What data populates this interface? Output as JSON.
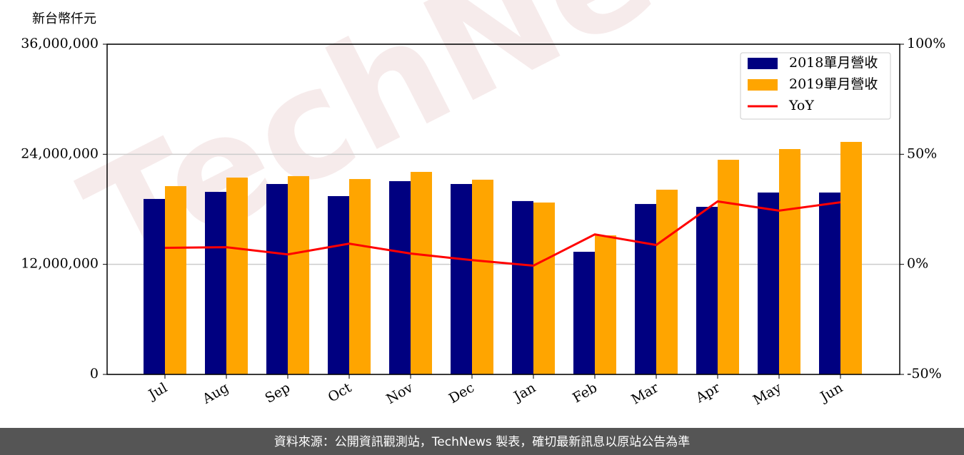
{
  "chart_data": {
    "type": "bar-line",
    "y_label": "新台幣仟元",
    "watermark": "TechNews",
    "footer": "資料來源：公開資訊觀測站，TechNews 製表，確切最新訊息以原站公告為準",
    "categories": [
      "Jul",
      "Aug",
      "Sep",
      "Oct",
      "Nov",
      "Dec",
      "Jan",
      "Feb",
      "Mar",
      "Apr",
      "May",
      "Jun"
    ],
    "series": [
      {
        "name": "2018單月營收",
        "color": "#000080",
        "type": "bar",
        "values": [
          19130000,
          19900000,
          20760000,
          19440000,
          21070000,
          20760000,
          18900000,
          13370000,
          18580000,
          18270000,
          19830000,
          19830000
        ]
      },
      {
        "name": "2019單月營收",
        "color": "#FFA500",
        "type": "bar",
        "values": [
          20530000,
          21460000,
          21620000,
          21300000,
          22080000,
          21230000,
          18740000,
          15160000,
          20140000,
          23400000,
          24570000,
          25350000
        ]
      },
      {
        "name": "YoY",
        "color": "#FF0000",
        "type": "line",
        "axis": "y2",
        "values": [
          7.5,
          7.8,
          4.5,
          9.4,
          4.9,
          1.9,
          -0.6,
          13.6,
          8.8,
          28.6,
          24.4,
          28.2
        ]
      }
    ],
    "ylim": [
      0,
      36000000
    ],
    "yticks": [
      0,
      {
        "value": 12000000,
        "label": "12,000,000"
      },
      {
        "value": 24000000,
        "label": "24,000,000"
      },
      {
        "value": 36000000,
        "label": "36,000,000"
      }
    ],
    "y2lim": [
      -50,
      100
    ],
    "y2ticks": [
      {
        "value": -50,
        "label": "-50%"
      },
      {
        "value": 0,
        "label": "0%"
      },
      {
        "value": 50,
        "label": "50%"
      },
      {
        "value": 100,
        "label": "100%"
      }
    ],
    "grid": true,
    "legend": "upper right"
  }
}
